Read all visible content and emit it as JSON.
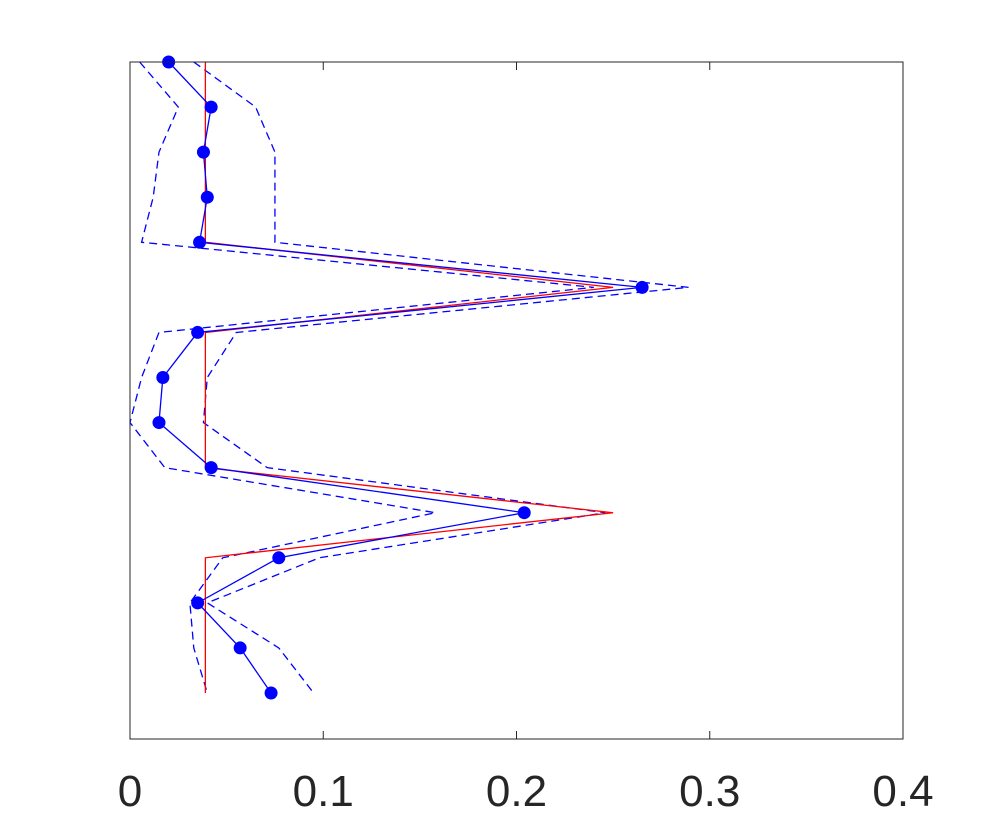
{
  "chart_data": {
    "type": "line",
    "title": "",
    "xlabel": "",
    "ylabel": "",
    "xlim": [
      0,
      0.4
    ],
    "xticks": [
      0,
      0.1,
      0.2,
      0.3,
      0.4
    ],
    "xtick_labels": [
      "0",
      "0.1",
      "0.2",
      "0.3",
      "0.4"
    ],
    "ylim": [
      0,
      15
    ],
    "y_axis_ticks_shown": false,
    "grid": false,
    "legend": "none",
    "series": [
      {
        "role": "estimate",
        "color": "#0000ff",
        "line_style": "solid",
        "marker": "filled-circle",
        "points": [
          {
            "x": 0.02,
            "y": 1
          },
          {
            "x": 0.042,
            "y": 2
          },
          {
            "x": 0.038,
            "y": 3
          },
          {
            "x": 0.04,
            "y": 4
          },
          {
            "x": 0.036,
            "y": 5
          },
          {
            "x": 0.265,
            "y": 6
          },
          {
            "x": 0.035,
            "y": 7
          },
          {
            "x": 0.017,
            "y": 8
          },
          {
            "x": 0.015,
            "y": 9
          },
          {
            "x": 0.042,
            "y": 10
          },
          {
            "x": 0.204,
            "y": 11
          },
          {
            "x": 0.077,
            "y": 12
          },
          {
            "x": 0.035,
            "y": 13
          },
          {
            "x": 0.057,
            "y": 14
          },
          {
            "x": 0.073,
            "y": 15
          }
        ]
      },
      {
        "role": "upper-bound",
        "color": "#0000ff",
        "line_style": "dashed",
        "marker": "none",
        "points": [
          {
            "x": 0.033,
            "y": 1
          },
          {
            "x": 0.065,
            "y": 2
          },
          {
            "x": 0.075,
            "y": 3
          },
          {
            "x": 0.075,
            "y": 4
          },
          {
            "x": 0.075,
            "y": 5
          },
          {
            "x": 0.289,
            "y": 6
          },
          {
            "x": 0.055,
            "y": 7
          },
          {
            "x": 0.04,
            "y": 8
          },
          {
            "x": 0.038,
            "y": 9
          },
          {
            "x": 0.071,
            "y": 10
          },
          {
            "x": 0.246,
            "y": 11
          },
          {
            "x": 0.098,
            "y": 12
          },
          {
            "x": 0.04,
            "y": 13
          },
          {
            "x": 0.077,
            "y": 14
          },
          {
            "x": 0.095,
            "y": 15
          }
        ]
      },
      {
        "role": "lower-bound",
        "color": "#0000ff",
        "line_style": "dashed",
        "marker": "none",
        "points": [
          {
            "x": 0.005,
            "y": 1
          },
          {
            "x": 0.025,
            "y": 2
          },
          {
            "x": 0.015,
            "y": 3
          },
          {
            "x": 0.012,
            "y": 4
          },
          {
            "x": 0.006,
            "y": 5
          },
          {
            "x": 0.24,
            "y": 6
          },
          {
            "x": 0.015,
            "y": 7
          },
          {
            "x": 0.006,
            "y": 8
          },
          {
            "x": 0.0,
            "y": 9
          },
          {
            "x": 0.018,
            "y": 10
          },
          {
            "x": 0.158,
            "y": 11
          },
          {
            "x": 0.048,
            "y": 12
          },
          {
            "x": 0.031,
            "y": 13
          },
          {
            "x": 0.033,
            "y": 14
          },
          {
            "x": 0.04,
            "y": 15
          }
        ]
      },
      {
        "role": "true-value",
        "color": "#ff0000",
        "line_style": "solid",
        "marker": "none",
        "points": [
          {
            "x": 0.039,
            "y": 1
          },
          {
            "x": 0.039,
            "y": 2
          },
          {
            "x": 0.039,
            "y": 3
          },
          {
            "x": 0.039,
            "y": 4
          },
          {
            "x": 0.039,
            "y": 5
          },
          {
            "x": 0.25,
            "y": 6
          },
          {
            "x": 0.039,
            "y": 7
          },
          {
            "x": 0.039,
            "y": 8
          },
          {
            "x": 0.039,
            "y": 9
          },
          {
            "x": 0.039,
            "y": 10
          },
          {
            "x": 0.25,
            "y": 11
          },
          {
            "x": 0.039,
            "y": 12
          },
          {
            "x": 0.039,
            "y": 13
          },
          {
            "x": 0.039,
            "y": 14
          },
          {
            "x": 0.039,
            "y": 15
          }
        ]
      }
    ]
  }
}
